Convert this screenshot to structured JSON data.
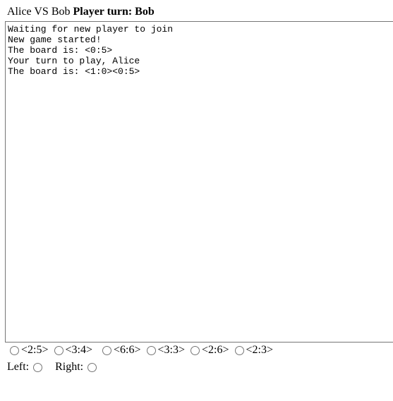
{
  "header": {
    "players": "Alice VS Bob",
    "turn_label": "Player turn: Bob"
  },
  "log": {
    "lines": [
      "Waiting for new player to join",
      "New game started!",
      "The board is: <0:5>",
      "Your turn to play, Alice",
      "The board is: <1:0><0:5>"
    ]
  },
  "tiles": [
    {
      "label": "<2:5>"
    },
    {
      "label": "<3:4>"
    },
    {
      "label": "<6:6>"
    },
    {
      "label": "<3:3>"
    },
    {
      "label": "<2:6>"
    },
    {
      "label": "<2:3>"
    }
  ],
  "sides": {
    "left_label": "Left:",
    "right_label": "Right:"
  }
}
